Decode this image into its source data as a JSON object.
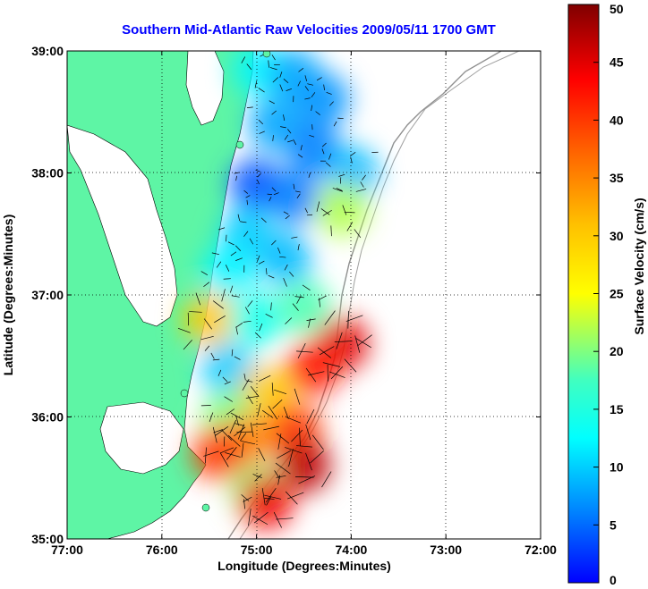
{
  "chart_data": {
    "type": "heatmap",
    "title": "Southern Mid-Atlantic Raw Velocities 2009/05/11 1700 GMT",
    "xlabel": "Longitude (Degrees:Minutes)",
    "ylabel": "Latitude (Degrees:Minutes)",
    "colorbar_label": "Surface Velocity (cm/s)",
    "xlim": [
      -77,
      -72
    ],
    "ylim": [
      35,
      39
    ],
    "x_ticks": [
      {
        "value": -77,
        "label": "77:00"
      },
      {
        "value": -76,
        "label": "76:00"
      },
      {
        "value": -75,
        "label": "75:00"
      },
      {
        "value": -74,
        "label": "74:00"
      },
      {
        "value": -73,
        "label": "73:00"
      },
      {
        "value": -72,
        "label": "72:00"
      }
    ],
    "y_ticks": [
      {
        "value": 35,
        "label": "35:00"
      },
      {
        "value": 36,
        "label": "36:00"
      },
      {
        "value": 37,
        "label": "37:00"
      },
      {
        "value": 38,
        "label": "38:00"
      },
      {
        "value": 39,
        "label": "39:00"
      }
    ],
    "color_scale": {
      "min": 0,
      "max": 50,
      "ticks": [
        0,
        5,
        10,
        15,
        20,
        25,
        30,
        35,
        40,
        45,
        50
      ],
      "colormap": "jet"
    },
    "grid": true,
    "land_color": "#5ef5a5",
    "series": [
      {
        "values_cm_s": [
          {
            "lon": -74.97,
            "lat": 38.85,
            "v": 12
          },
          {
            "lon": -74.6,
            "lat": 38.8,
            "v": 8
          },
          {
            "lon": -74.3,
            "lat": 38.6,
            "v": 7
          },
          {
            "lon": -74.8,
            "lat": 38.4,
            "v": 8
          },
          {
            "lon": -74.4,
            "lat": 38.2,
            "v": 6
          },
          {
            "lon": -74.0,
            "lat": 38.0,
            "v": 9
          },
          {
            "lon": -75.0,
            "lat": 37.9,
            "v": 4
          },
          {
            "lon": -74.6,
            "lat": 37.8,
            "v": 6
          },
          {
            "lon": -74.1,
            "lat": 37.7,
            "v": 22
          },
          {
            "lon": -75.1,
            "lat": 37.5,
            "v": 10
          },
          {
            "lon": -74.7,
            "lat": 37.3,
            "v": 9
          },
          {
            "lon": -75.3,
            "lat": 37.2,
            "v": 12
          },
          {
            "lon": -75.5,
            "lat": 36.8,
            "v": 30
          },
          {
            "lon": -75.0,
            "lat": 36.8,
            "v": 14
          },
          {
            "lon": -74.5,
            "lat": 36.9,
            "v": 18
          },
          {
            "lon": -74.1,
            "lat": 36.6,
            "v": 45
          },
          {
            "lon": -74.4,
            "lat": 36.4,
            "v": 42
          },
          {
            "lon": -75.3,
            "lat": 36.4,
            "v": 10
          },
          {
            "lon": -74.9,
            "lat": 36.2,
            "v": 30
          },
          {
            "lon": -75.3,
            "lat": 36.0,
            "v": 20
          },
          {
            "lon": -74.6,
            "lat": 35.9,
            "v": 40
          },
          {
            "lon": -75.1,
            "lat": 35.8,
            "v": 35
          },
          {
            "lon": -74.5,
            "lat": 35.6,
            "v": 47
          },
          {
            "lon": -75.4,
            "lat": 35.7,
            "v": 40
          },
          {
            "lon": -75.0,
            "lat": 35.4,
            "v": 20
          },
          {
            "lon": -74.9,
            "lat": 35.3,
            "v": 44
          }
        ]
      }
    ]
  }
}
